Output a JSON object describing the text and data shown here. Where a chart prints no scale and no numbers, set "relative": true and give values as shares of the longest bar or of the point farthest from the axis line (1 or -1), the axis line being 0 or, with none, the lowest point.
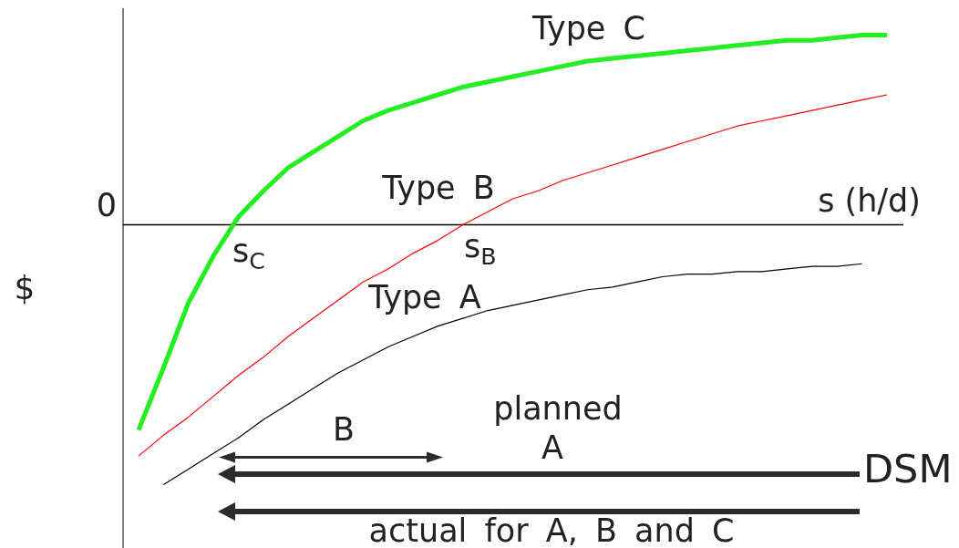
{
  "chart_data": {
    "type": "line",
    "relative": true,
    "categories": [
      null,
      null,
      null,
      null,
      null,
      null,
      null,
      null,
      null,
      null,
      null,
      null,
      null,
      null,
      null,
      null,
      null,
      null,
      null,
      null,
      null,
      null,
      null,
      null,
      null,
      null,
      null,
      null,
      null,
      null,
      null
    ],
    "series": [
      {
        "name": "Type A",
        "color": "#000000",
        "values": [
          null,
          -1.0,
          -0.94,
          -0.88,
          -0.82,
          -0.75,
          -0.69,
          -0.63,
          -0.57,
          -0.52,
          -0.47,
          -0.43,
          -0.39,
          -0.36,
          -0.33,
          -0.31,
          -0.29,
          -0.27,
          -0.25,
          -0.24,
          -0.22,
          -0.2,
          -0.19,
          -0.19,
          -0.18,
          -0.18,
          -0.17,
          -0.16,
          -0.16,
          -0.15,
          null
        ]
      },
      {
        "name": "Type B",
        "color": "#ff0000",
        "values": [
          -0.89,
          -0.81,
          -0.74,
          -0.66,
          -0.58,
          -0.51,
          -0.43,
          -0.36,
          -0.29,
          -0.22,
          -0.17,
          -0.11,
          -0.06,
          0.0,
          0.05,
          0.1,
          0.13,
          0.17,
          0.2,
          0.23,
          0.26,
          0.29,
          0.32,
          0.35,
          0.38,
          0.4,
          0.42,
          0.44,
          0.46,
          0.48,
          0.5
        ]
      },
      {
        "name": "Type C",
        "color": "#22ee22",
        "values": [
          -0.79,
          -0.55,
          -0.3,
          -0.12,
          0.03,
          0.13,
          0.22,
          0.28,
          0.34,
          0.4,
          0.44,
          0.47,
          0.5,
          0.53,
          0.55,
          0.57,
          0.59,
          0.61,
          0.63,
          0.64,
          0.65,
          0.66,
          0.67,
          0.68,
          0.69,
          0.7,
          0.71,
          0.71,
          0.72,
          0.73,
          0.73
        ]
      }
    ],
    "xlabel": "s (h/d)",
    "ylabel": "$",
    "annotations": [
      "0",
      "s$_{C}$",
      "s$_{B}$",
      "B",
      "planned",
      "A",
      "DSM",
      "actual for A, B and C"
    ]
  }
}
